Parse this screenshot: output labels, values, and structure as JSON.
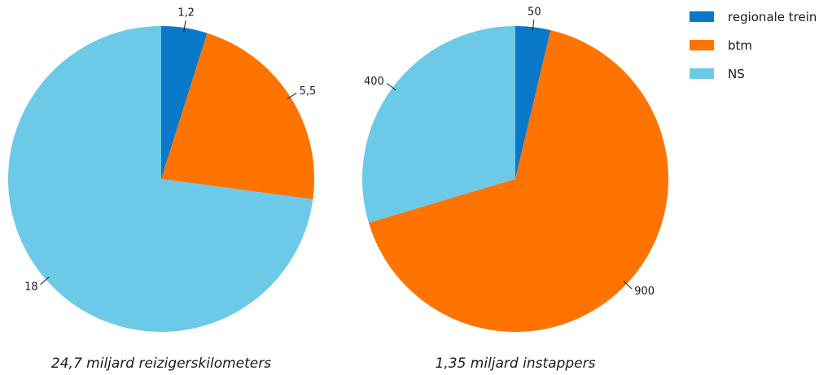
{
  "colors": {
    "regionale_trein": "#0a78c8",
    "btm": "#ff7300",
    "NS": "#6ccae8"
  },
  "legend": {
    "position": "top-right",
    "items": [
      {
        "key": "regionale_trein",
        "label": "regionale trein",
        "color": "#0a78c8"
      },
      {
        "key": "btm",
        "label": "btm",
        "color": "#ff7300"
      },
      {
        "key": "NS",
        "label": "NS",
        "color": "#6ccae8"
      }
    ]
  },
  "chart_data": [
    {
      "type": "pie",
      "caption": "24,7 miljard reizigerskilometers",
      "slices": [
        {
          "key": "regionale_trein",
          "value": 1.2,
          "label": "1,2"
        },
        {
          "key": "btm",
          "value": 5.5,
          "label": "5,5"
        },
        {
          "key": "NS",
          "value": 18,
          "label": "18"
        }
      ]
    },
    {
      "type": "pie",
      "caption": "1,35 miljard instappers",
      "slices": [
        {
          "key": "regionale_trein",
          "value": 50,
          "label": "50"
        },
        {
          "key": "btm",
          "value": 900,
          "label": "900"
        },
        {
          "key": "NS",
          "value": 400,
          "label": "400"
        }
      ]
    }
  ]
}
